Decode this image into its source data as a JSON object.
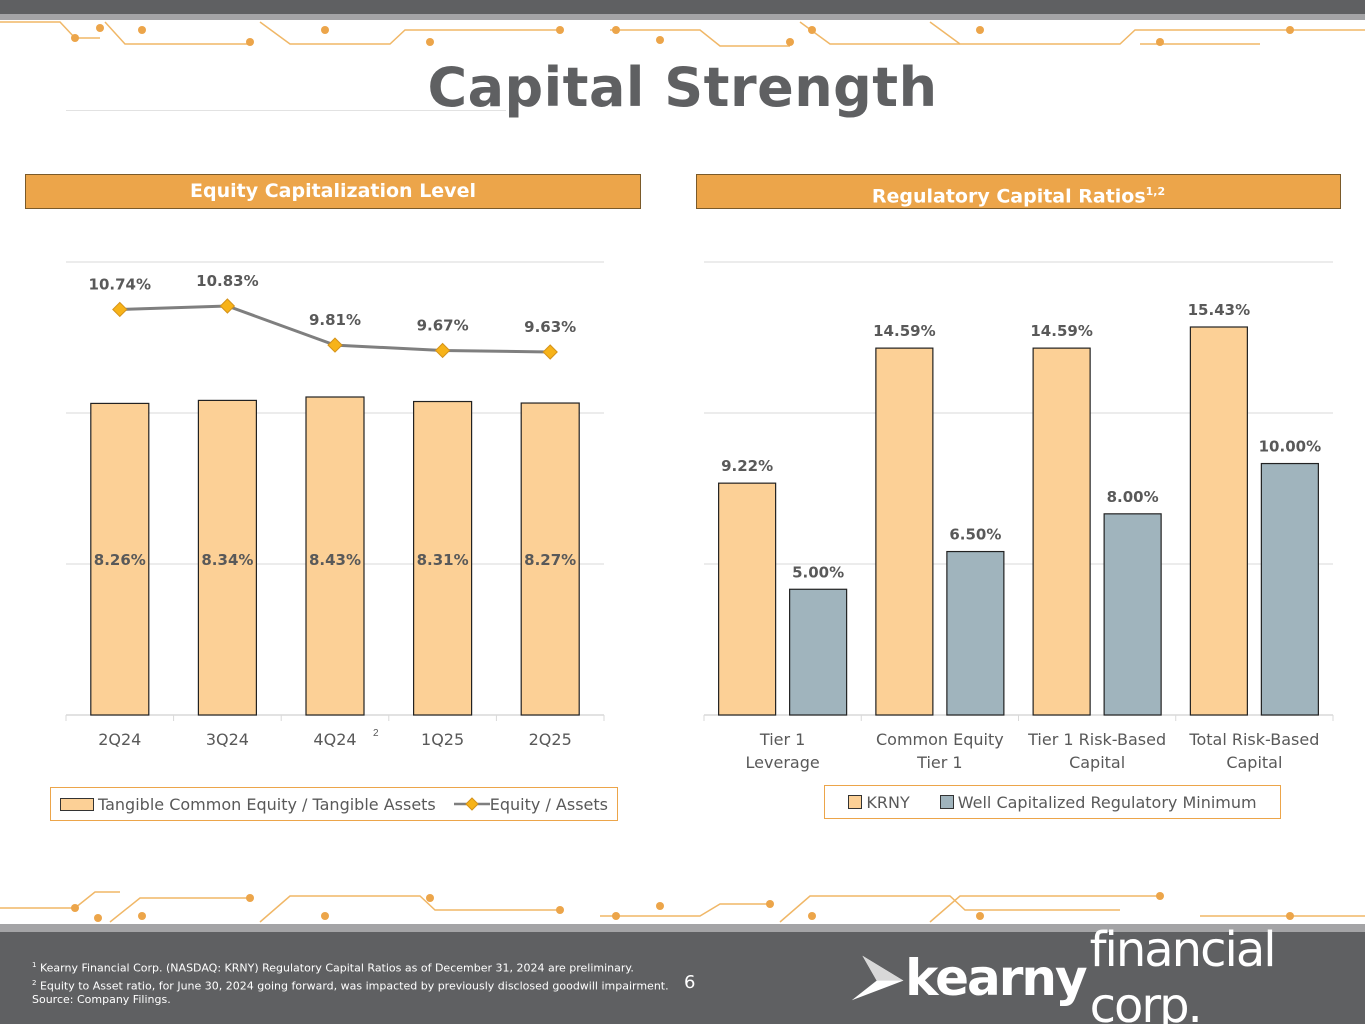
{
  "page": {
    "title": "Capital Strength",
    "page_number": "6"
  },
  "left_panel": {
    "header": "Equity Capitalization Level",
    "xlabel_note": "2"
  },
  "right_panel": {
    "header": "Regulatory Capital Ratios",
    "header_sup": "1,2"
  },
  "chart_data": [
    {
      "type": "bar",
      "title": "Equity Capitalization Level",
      "categories": [
        "2Q24",
        "3Q24",
        "4Q24",
        "1Q25",
        "2Q25"
      ],
      "series": [
        {
          "name": "Tangible Common Equity / Tangible Assets",
          "type": "bar",
          "values": [
            8.26,
            8.34,
            8.43,
            8.31,
            8.27
          ],
          "labels": [
            "8.26%",
            "8.34%",
            "8.43%",
            "8.31%",
            "8.27%"
          ],
          "color": "#fcd096"
        },
        {
          "name": "Equity / Assets",
          "type": "line",
          "values": [
            10.74,
            10.83,
            9.81,
            9.67,
            9.63
          ],
          "labels": [
            "10.74%",
            "10.83%",
            "9.81%",
            "9.67%",
            "9.63%"
          ],
          "color": "#7f7f7f",
          "marker_color": "#f7b319"
        }
      ],
      "legend": [
        "Tangible Common Equity / Tangible Assets",
        "Equity / Assets"
      ],
      "legend_position": "bottom",
      "grid": true
    },
    {
      "type": "bar",
      "title": "Regulatory Capital Ratios",
      "categories": [
        [
          "Tier 1",
          "Leverage"
        ],
        [
          "Common Equity",
          "Tier 1"
        ],
        [
          "Tier 1 Risk-Based",
          "Capital"
        ],
        [
          "Total Risk-Based",
          "Capital"
        ]
      ],
      "series": [
        {
          "name": "KRNY",
          "values": [
            9.22,
            14.59,
            14.59,
            15.43
          ],
          "labels": [
            "9.22%",
            "14.59%",
            "14.59%",
            "15.43%"
          ],
          "color": "#fcd096"
        },
        {
          "name": "Well Capitalized Regulatory Minimum",
          "values": [
            5.0,
            6.5,
            8.0,
            10.0
          ],
          "labels": [
            "5.00%",
            "6.50%",
            "8.00%",
            "10.00%"
          ],
          "color": "#a0b4bd"
        }
      ],
      "legend": [
        "KRNY",
        "Well Capitalized Regulatory Minimum"
      ],
      "legend_position": "bottom",
      "grid": true
    }
  ],
  "footer": {
    "note1_marker": "1",
    "note1": " Kearny Financial Corp. (NASDAQ: KRNY) Regulatory Capital Ratios as of December 31, 2024 are preliminary.",
    "note2_marker": "2",
    "note2": " Equity to Asset ratio, for June 30, 2024 going forward, was impacted by previously disclosed goodwill impairment.",
    "source": "Source: Company Filings.",
    "logo_bold": "kearny",
    "logo_light": "financial corp."
  },
  "colors": {
    "accent": "#eca54a",
    "bar_primary": "#fcd096",
    "bar_secondary": "#a0b4bd",
    "line": "#7f7f7f",
    "marker": "#f7b319",
    "footer": "#5f6062"
  }
}
